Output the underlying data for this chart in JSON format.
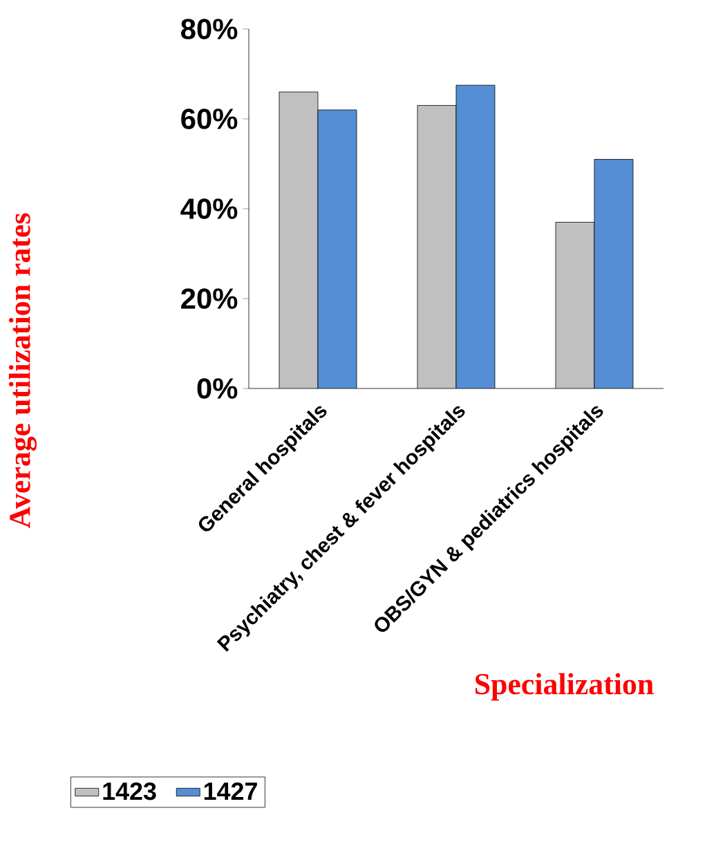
{
  "chart_data": {
    "type": "bar",
    "xlabel": "Specialization",
    "ylabel": "Average utilization rates",
    "categories": [
      "General hospitals",
      "Psychiatry, chest & fever hospitals",
      "OBS/GYN & pediatrics hospitals"
    ],
    "series": [
      {
        "name": "1423",
        "color": "#c0c0c0",
        "values": [
          66,
          63,
          37
        ]
      },
      {
        "name": "1427",
        "color": "#558ed5",
        "values": [
          62,
          67.5,
          51
        ]
      }
    ],
    "ylim": [
      0,
      80
    ],
    "yticks": [
      {
        "value": 0,
        "label": "0%"
      },
      {
        "value": 20,
        "label": "20%"
      },
      {
        "value": 40,
        "label": "40%"
      },
      {
        "value": 60,
        "label": "60%"
      },
      {
        "value": 80,
        "label": "80%"
      }
    ],
    "legend": "bottom"
  }
}
